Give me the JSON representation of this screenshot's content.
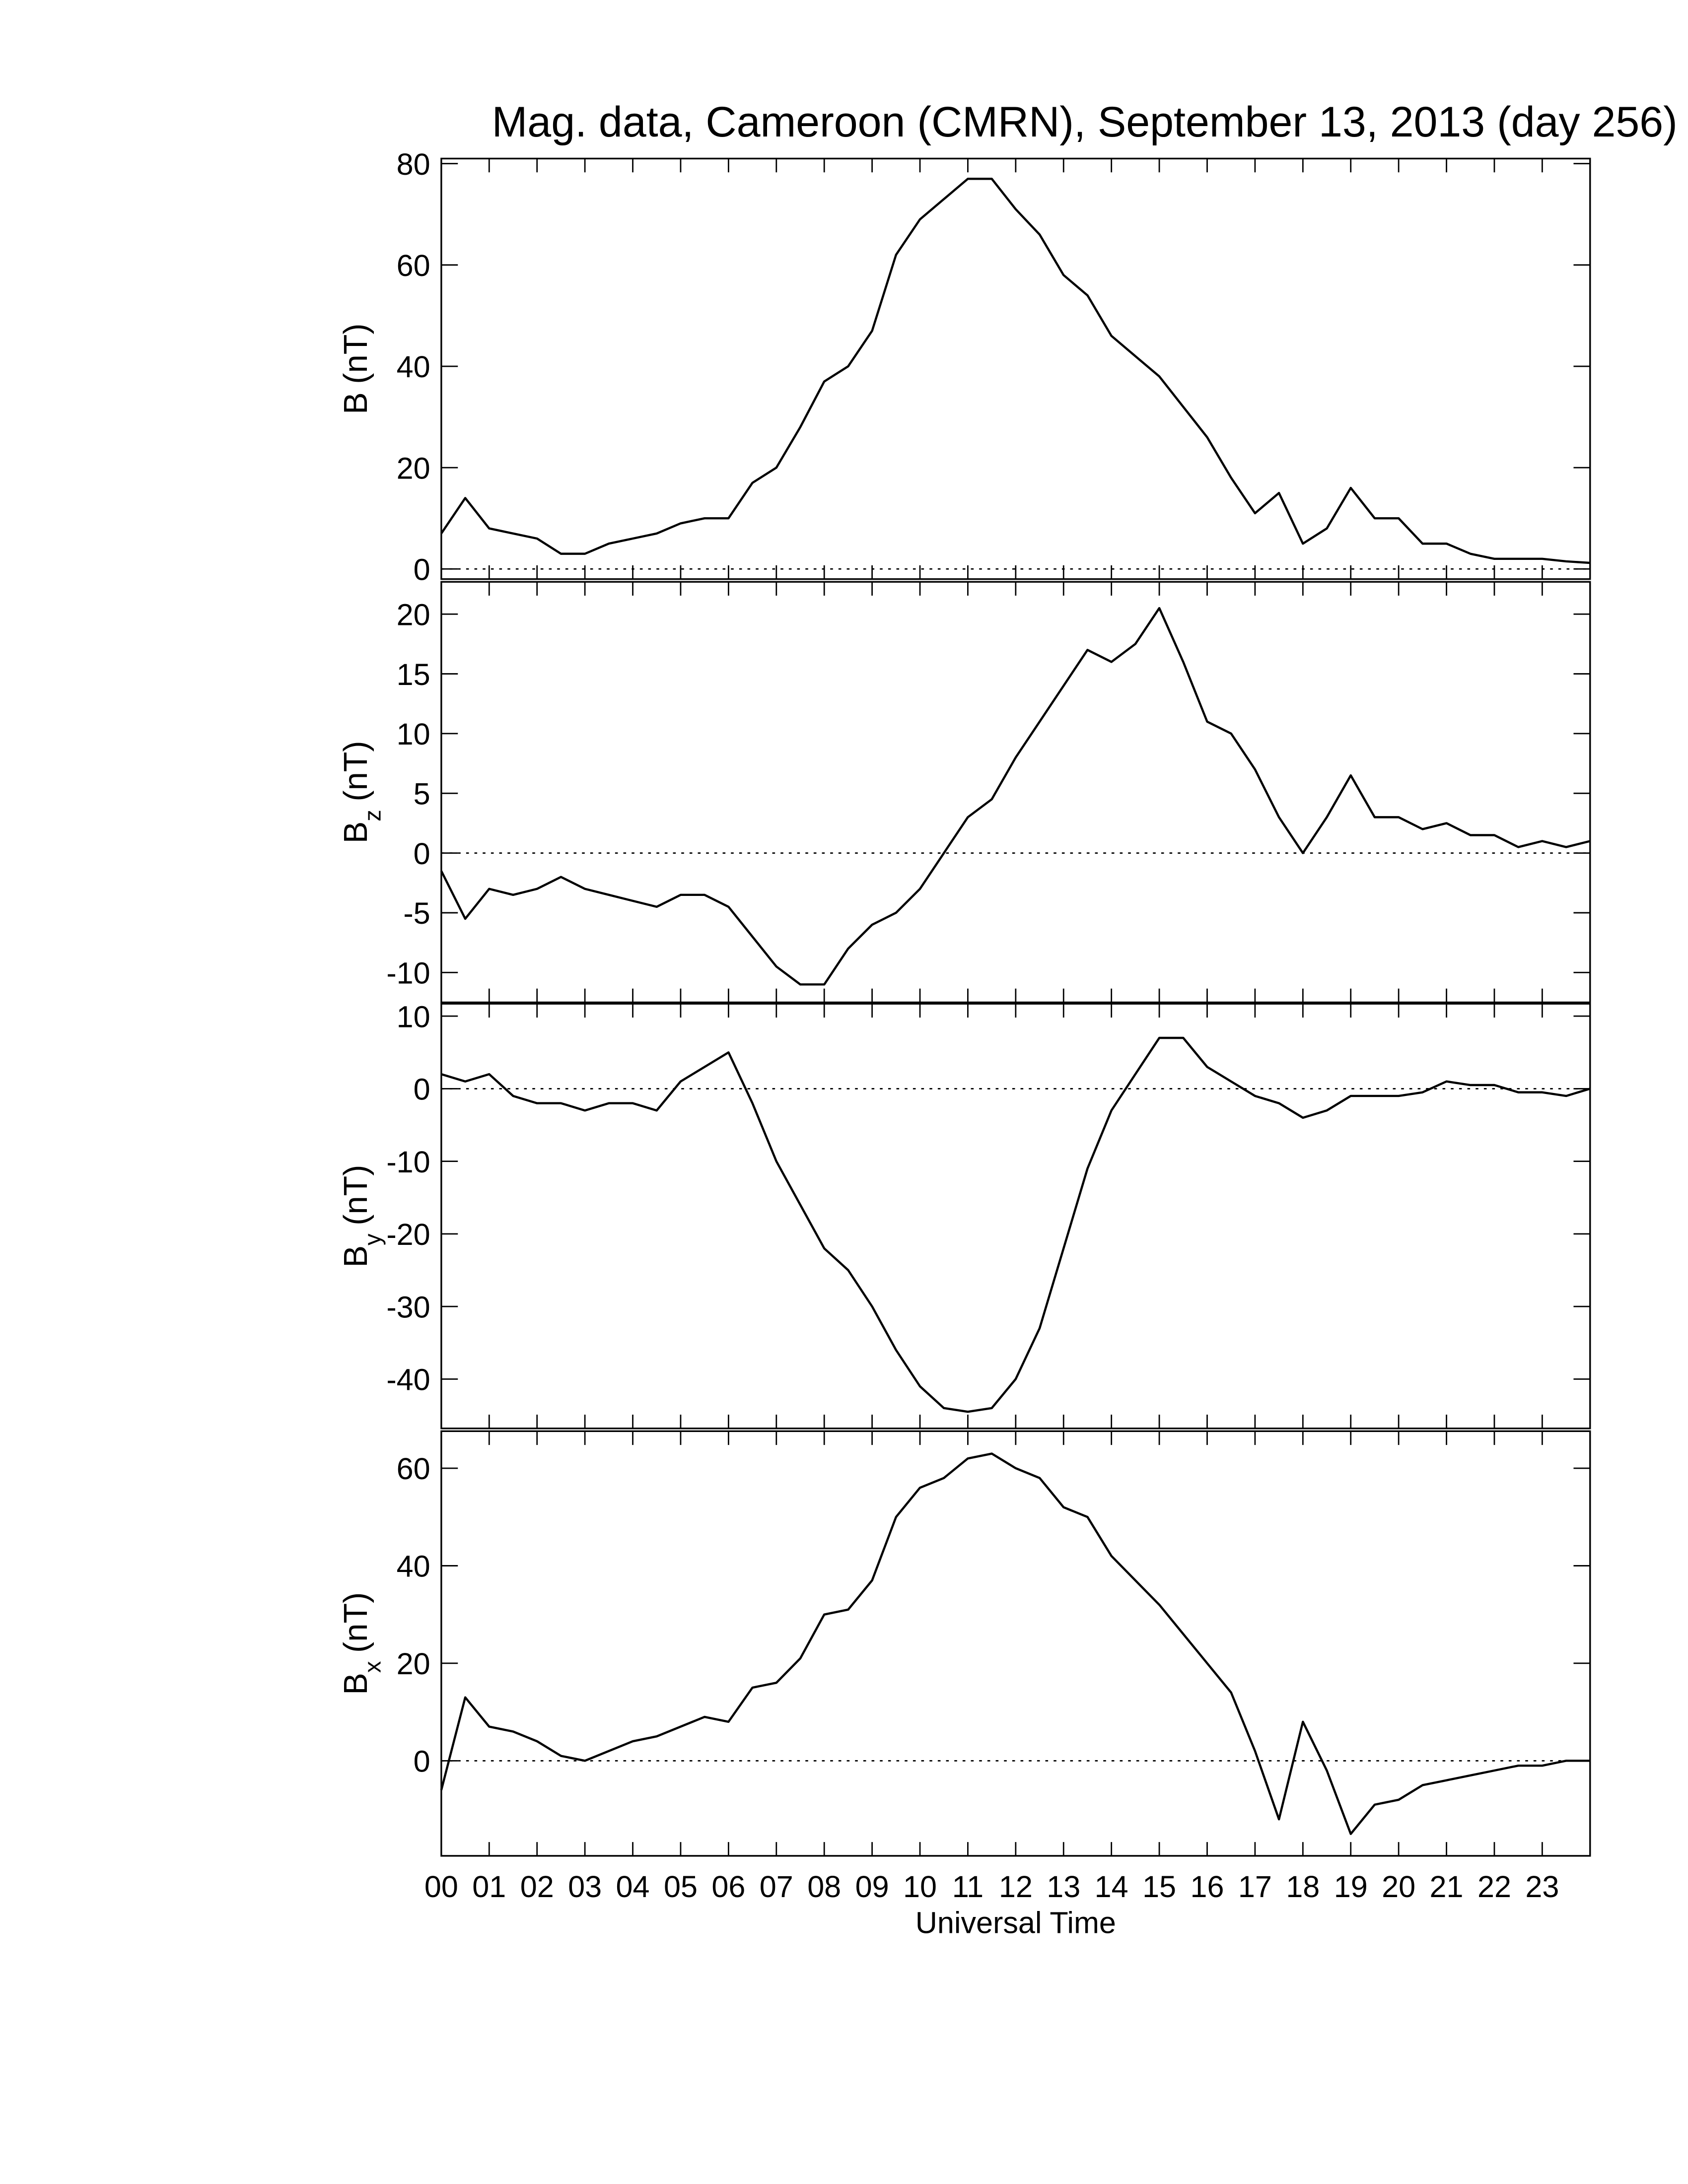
{
  "chart_data": [
    {
      "type": "line",
      "title": "Mag. data, Cameroon (CMRN), September 13, 2013 (day 256)",
      "ylabel": {
        "main": "B",
        "unit": "(nT)"
      },
      "xlim": [
        0,
        24
      ],
      "xticks": [
        0,
        1,
        2,
        3,
        4,
        5,
        6,
        7,
        8,
        9,
        10,
        11,
        12,
        13,
        14,
        15,
        16,
        17,
        18,
        19,
        20,
        21,
        22,
        23
      ],
      "ylim": [
        -2,
        81
      ],
      "yticks": [
        0,
        20,
        40,
        60,
        80
      ],
      "hline": 0,
      "x": [
        0,
        0.5,
        1,
        1.5,
        2,
        2.5,
        3,
        3.5,
        4,
        4.5,
        5,
        5.5,
        6,
        6.5,
        7,
        7.5,
        8,
        8.5,
        9,
        9.5,
        10,
        10.5,
        11,
        11.5,
        12,
        12.5,
        13,
        13.5,
        14,
        14.5,
        15,
        15.5,
        16,
        16.5,
        17,
        17.5,
        18,
        18.5,
        19,
        19.5,
        20,
        20.5,
        21,
        21.5,
        22,
        22.5,
        23,
        23.5,
        24
      ],
      "series": [
        {
          "color": "#000000",
          "values": [
            7,
            14,
            8,
            7,
            6,
            3,
            3,
            5,
            6,
            7,
            9,
            10,
            10,
            17,
            20,
            28,
            37,
            40,
            47,
            62,
            69,
            73,
            77,
            77,
            71,
            66,
            58,
            54,
            46,
            42,
            38,
            32,
            26,
            18,
            11,
            15,
            5,
            8,
            16,
            10,
            10,
            5,
            5,
            3,
            2,
            2,
            2,
            1.5,
            1.2
          ]
        }
      ]
    },
    {
      "type": "line",
      "ylabel": {
        "main": "B",
        "sub": "z",
        "unit": "(nT)"
      },
      "xlim": [
        0,
        24
      ],
      "xticks": [
        0,
        1,
        2,
        3,
        4,
        5,
        6,
        7,
        8,
        9,
        10,
        11,
        12,
        13,
        14,
        15,
        16,
        17,
        18,
        19,
        20,
        21,
        22,
        23
      ],
      "ylim": [
        -12.5,
        22.7
      ],
      "yticks": [
        -10,
        -5,
        0,
        5,
        10,
        15,
        20
      ],
      "hline": 0,
      "x": [
        0,
        0.5,
        1,
        1.5,
        2,
        2.5,
        3,
        3.5,
        4,
        4.5,
        5,
        5.5,
        6,
        6.5,
        7,
        7.5,
        8,
        8.5,
        9,
        9.5,
        10,
        10.5,
        11,
        11.5,
        12,
        12.5,
        13,
        13.5,
        14,
        14.5,
        15,
        15.5,
        16,
        16.5,
        17,
        17.5,
        18,
        18.5,
        19,
        19.5,
        20,
        20.5,
        21,
        21.5,
        22,
        22.5,
        23,
        23.5,
        24
      ],
      "series": [
        {
          "color": "#000000",
          "values": [
            -1.5,
            -5.5,
            -3,
            -3.5,
            -3,
            -2,
            -3,
            -3.5,
            -4,
            -4.5,
            -3.5,
            -3.5,
            -4.5,
            -7,
            -9.5,
            -11,
            -11,
            -8,
            -6,
            -5,
            -3,
            0,
            3,
            4.5,
            8,
            11,
            14,
            17,
            16,
            17.5,
            20.5,
            16,
            11,
            10,
            7,
            3,
            0,
            3,
            6.5,
            3,
            3,
            2,
            2.5,
            1.5,
            1.5,
            0.5,
            1,
            0.5,
            1
          ]
        }
      ]
    },
    {
      "type": "line",
      "ylabel": {
        "main": "B",
        "sub": "y",
        "unit": "(nT)"
      },
      "xlim": [
        0,
        24
      ],
      "xticks": [
        0,
        1,
        2,
        3,
        4,
        5,
        6,
        7,
        8,
        9,
        10,
        11,
        12,
        13,
        14,
        15,
        16,
        17,
        18,
        19,
        20,
        21,
        22,
        23
      ],
      "ylim": [
        -46.8,
        11.7
      ],
      "yticks": [
        -40,
        -30,
        -20,
        -10,
        0,
        10
      ],
      "hline": 0,
      "x": [
        0,
        0.5,
        1,
        1.5,
        2,
        2.5,
        3,
        3.5,
        4,
        4.5,
        5,
        5.5,
        6,
        6.5,
        7,
        7.5,
        8,
        8.5,
        9,
        9.5,
        10,
        10.5,
        11,
        11.5,
        12,
        12.5,
        13,
        13.5,
        14,
        14.5,
        15,
        15.5,
        16,
        16.5,
        17,
        17.5,
        18,
        18.5,
        19,
        19.5,
        20,
        20.5,
        21,
        21.5,
        22,
        22.5,
        23,
        23.5,
        24
      ],
      "series": [
        {
          "color": "#000000",
          "values": [
            2,
            1,
            2,
            -1,
            -2,
            -2,
            -3,
            -2,
            -2,
            -3,
            1,
            3,
            5,
            -2,
            -10,
            -16,
            -22,
            -25,
            -30,
            -36,
            -41,
            -44,
            -44.5,
            -44,
            -40,
            -33,
            -22,
            -11,
            -3,
            2,
            7,
            7,
            3,
            1,
            -1,
            -2,
            -4,
            -3,
            -1,
            -1,
            -1,
            -0.5,
            1,
            0.5,
            0.5,
            -0.5,
            -0.5,
            -1,
            0
          ]
        }
      ]
    },
    {
      "type": "line",
      "ylabel": {
        "main": "B",
        "sub": "x",
        "unit": "(nT)"
      },
      "xlabel": "Universal Time",
      "xlim": [
        0,
        24
      ],
      "xticks": [
        {
          "value": 0,
          "label": "00"
        },
        {
          "value": 1,
          "label": "01"
        },
        {
          "value": 2,
          "label": "02"
        },
        {
          "value": 3,
          "label": "03"
        },
        {
          "value": 4,
          "label": "04"
        },
        {
          "value": 5,
          "label": "05"
        },
        {
          "value": 6,
          "label": "06"
        },
        {
          "value": 7,
          "label": "07"
        },
        {
          "value": 8,
          "label": "08"
        },
        {
          "value": 9,
          "label": "09"
        },
        10,
        11,
        12,
        13,
        14,
        15,
        16,
        17,
        18,
        19,
        20,
        21,
        22,
        23
      ],
      "ylim": [
        -19.5,
        67.6
      ],
      "yticks": [
        0,
        20,
        40,
        60
      ],
      "hline": 0,
      "x": [
        0,
        0.5,
        1,
        1.5,
        2,
        2.5,
        3,
        3.5,
        4,
        4.5,
        5,
        5.5,
        6,
        6.5,
        7,
        7.5,
        8,
        8.5,
        9,
        9.5,
        10,
        10.5,
        11,
        11.5,
        12,
        12.5,
        13,
        13.5,
        14,
        14.5,
        15,
        15.5,
        16,
        16.5,
        17,
        17.5,
        18,
        18.5,
        19,
        19.5,
        20,
        20.5,
        21,
        21.5,
        22,
        22.5,
        23,
        23.5,
        24
      ],
      "series": [
        {
          "color": "#000000",
          "values": [
            -6,
            13,
            7,
            6,
            4,
            1,
            0,
            2,
            4,
            5,
            7,
            9,
            8,
            15,
            16,
            21,
            30,
            31,
            37,
            50,
            56,
            58,
            62,
            63,
            60,
            58,
            52,
            50,
            42,
            37,
            32,
            26,
            20,
            14,
            2,
            -12,
            8,
            -2,
            -15,
            -9,
            -8,
            -5,
            -4,
            -3,
            -2,
            -1,
            -1,
            0,
            0
          ]
        }
      ]
    }
  ]
}
